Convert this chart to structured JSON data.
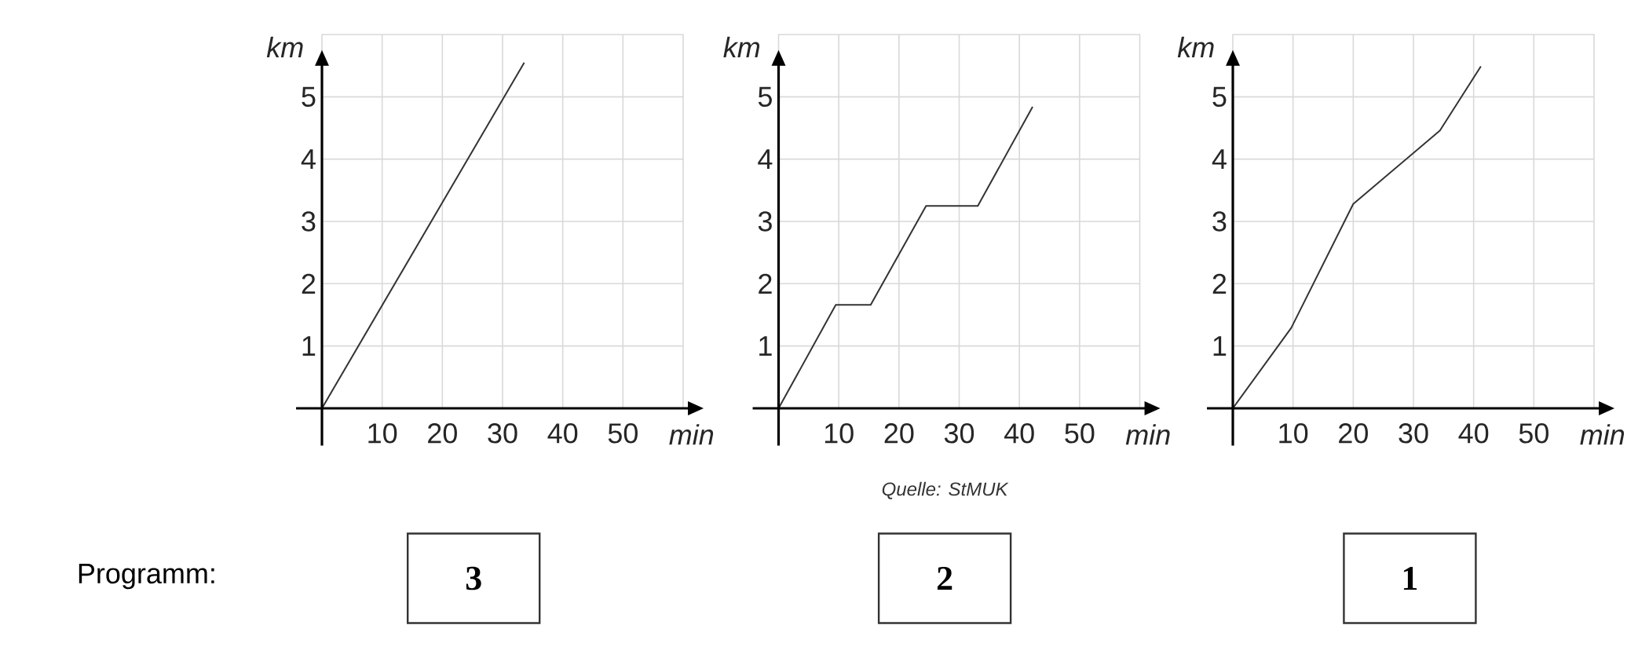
{
  "chart_data": [
    {
      "type": "line",
      "xlabel": "min",
      "ylabel": "km",
      "x": [
        0,
        33.6
      ],
      "series": [
        {
          "color": "#333333",
          "values": [
            0,
            5.55
          ]
        }
      ],
      "xlim": [
        0,
        60
      ],
      "ylim": [
        0,
        6
      ],
      "xticks": [
        10,
        20,
        30,
        40,
        50
      ],
      "yticks": [
        1,
        2,
        3,
        4,
        5
      ],
      "grid": true,
      "annotations": [
        "Programm:",
        "3"
      ]
    },
    {
      "type": "line",
      "xlabel": "min",
      "ylabel": "km",
      "x": [
        0,
        9.5,
        15.3,
        24.5,
        33.1,
        42.2
      ],
      "series": [
        {
          "color": "#333333",
          "values": [
            0,
            1.66,
            1.66,
            3.25,
            3.25,
            4.84
          ]
        }
      ],
      "xlim": [
        0,
        60
      ],
      "ylim": [
        0,
        6
      ],
      "xticks": [
        10,
        20,
        30,
        40,
        50
      ],
      "yticks": [
        1,
        2,
        3,
        4,
        5
      ],
      "grid": true,
      "annotations": [
        "Quelle: StMUK",
        "2"
      ]
    },
    {
      "type": "line",
      "xlabel": "min",
      "ylabel": "km",
      "x": [
        0,
        9.7,
        20.0,
        34.4,
        41.2
      ],
      "series": [
        {
          "color": "#333333",
          "values": [
            0,
            1.29,
            3.28,
            4.46,
            5.49
          ]
        }
      ],
      "xlim": [
        0,
        60
      ],
      "ylim": [
        0,
        6
      ],
      "xticks": [
        10,
        20,
        30,
        40,
        50
      ],
      "yticks": [
        1,
        2,
        3,
        4,
        5
      ],
      "grid": true,
      "annotations": [
        "1"
      ]
    }
  ]
}
